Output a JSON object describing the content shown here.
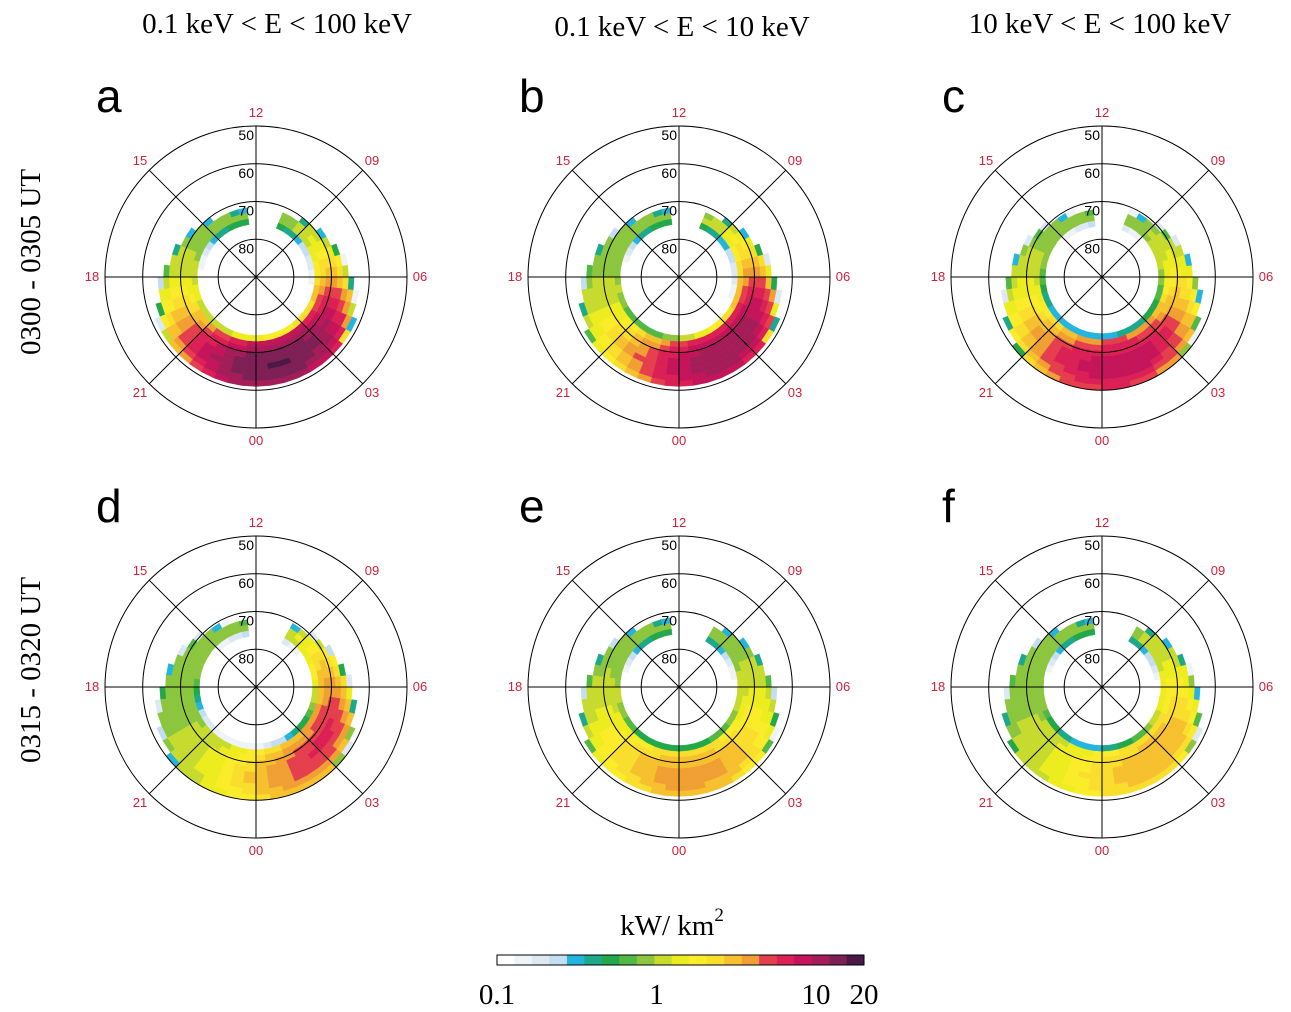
{
  "chart_data": {
    "type": "heatmap",
    "projection": "polar (magnetic latitude vs magnetic local time)",
    "column_titles": [
      "0.1 keV < E < 100 keV",
      "0.1 keV  < E < 10 keV",
      "10 keV < E < 100 keV"
    ],
    "row_titles": [
      "0300 - 0305 UT",
      "0315 - 0320  UT"
    ],
    "latitude_rings": [
      "50",
      "60",
      "70",
      "80"
    ],
    "mlt_labels": [
      "12",
      "15",
      "09",
      "18",
      "06",
      "21",
      "03",
      "00"
    ],
    "colorbar": {
      "title": "kW/ km",
      "title_superscript": "2",
      "ticks": [
        "0.1",
        "1",
        "10",
        "20"
      ],
      "tick_values": [
        0.1,
        1,
        10,
        20
      ],
      "scale": "log",
      "range": [
        0.1,
        20
      ],
      "colors": [
        "#ffffff",
        "#eef3f8",
        "#dce8f4",
        "#c3ddf1",
        "#23b4e0",
        "#1ca88a",
        "#22a84a",
        "#51b845",
        "#8cc63f",
        "#c6db2e",
        "#ecec1e",
        "#fbec29",
        "#f9de2d",
        "#f6c02f",
        "#f0a033",
        "#e53e4d",
        "#db2055",
        "#c4145a",
        "#a41d58",
        "#7e1f56",
        "#4c1848"
      ]
    },
    "panels": [
      {
        "letter": "a",
        "row": 0,
        "col": 0,
        "oval": {
          "lat_min": 63,
          "lat_max": 80,
          "peak": 15.0,
          "peak_mlt": 1.0,
          "gap": [
            10.5,
            12.5
          ]
        }
      },
      {
        "letter": "b",
        "row": 0,
        "col": 1,
        "oval": {
          "lat_min": 63,
          "lat_max": 80,
          "peak": 11.0,
          "peak_mlt": 2.2,
          "gap": [
            10.5,
            12.5
          ]
        }
      },
      {
        "letter": "c",
        "row": 0,
        "col": 2,
        "oval": {
          "lat_min": 62,
          "lat_max": 79,
          "peak": 8.0,
          "peak_mlt": 0.7,
          "gap": [
            10.5,
            12.5
          ]
        }
      },
      {
        "letter": "d",
        "row": 1,
        "col": 0,
        "oval": {
          "lat_min": 62,
          "lat_max": 79,
          "peak": 5.0,
          "peak_mlt": 3.5,
          "gap": [
            10.0,
            12.5
          ]
        }
      },
      {
        "letter": "e",
        "row": 1,
        "col": 1,
        "oval": {
          "lat_min": 63,
          "lat_max": 80,
          "peak": 3.0,
          "peak_mlt": 0.5,
          "gap": [
            10.0,
            12.5
          ]
        }
      },
      {
        "letter": "f",
        "row": 1,
        "col": 2,
        "oval": {
          "lat_min": 63,
          "lat_max": 80,
          "peak": 2.5,
          "peak_mlt": 2.5,
          "gap": [
            10.0,
            12.5
          ]
        }
      }
    ]
  }
}
